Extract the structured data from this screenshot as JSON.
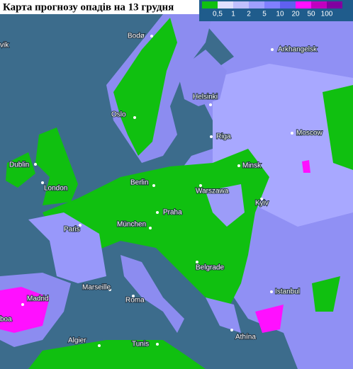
{
  "title": "Карта прогнозу опадів на 13 грудня",
  "legend": {
    "labels": [
      "0,5",
      "1",
      "2",
      "5",
      "10",
      "20",
      "50",
      "100"
    ],
    "colors": [
      "#10c010",
      "#e0e0ff",
      "#c0c0ff",
      "#a0a0ff",
      "#8080ff",
      "#6060f0",
      "#ff10ff",
      "#c000c0",
      "#8000a0"
    ]
  },
  "cities": [
    "Bodø",
    "vik",
    "Arkhangelsk",
    "Helsinki",
    "Oslo",
    "Riga",
    "Moscow",
    "Dublin",
    "Minsk",
    "Berlin",
    "Warszawa",
    "London",
    "Kyiv",
    "Paris",
    "Praha",
    "München",
    "Belgrade",
    "Marseille",
    "Madrid",
    "Roma",
    "Istanbul",
    "boa",
    "Algier",
    "Tunis",
    "Athína"
  ]
}
